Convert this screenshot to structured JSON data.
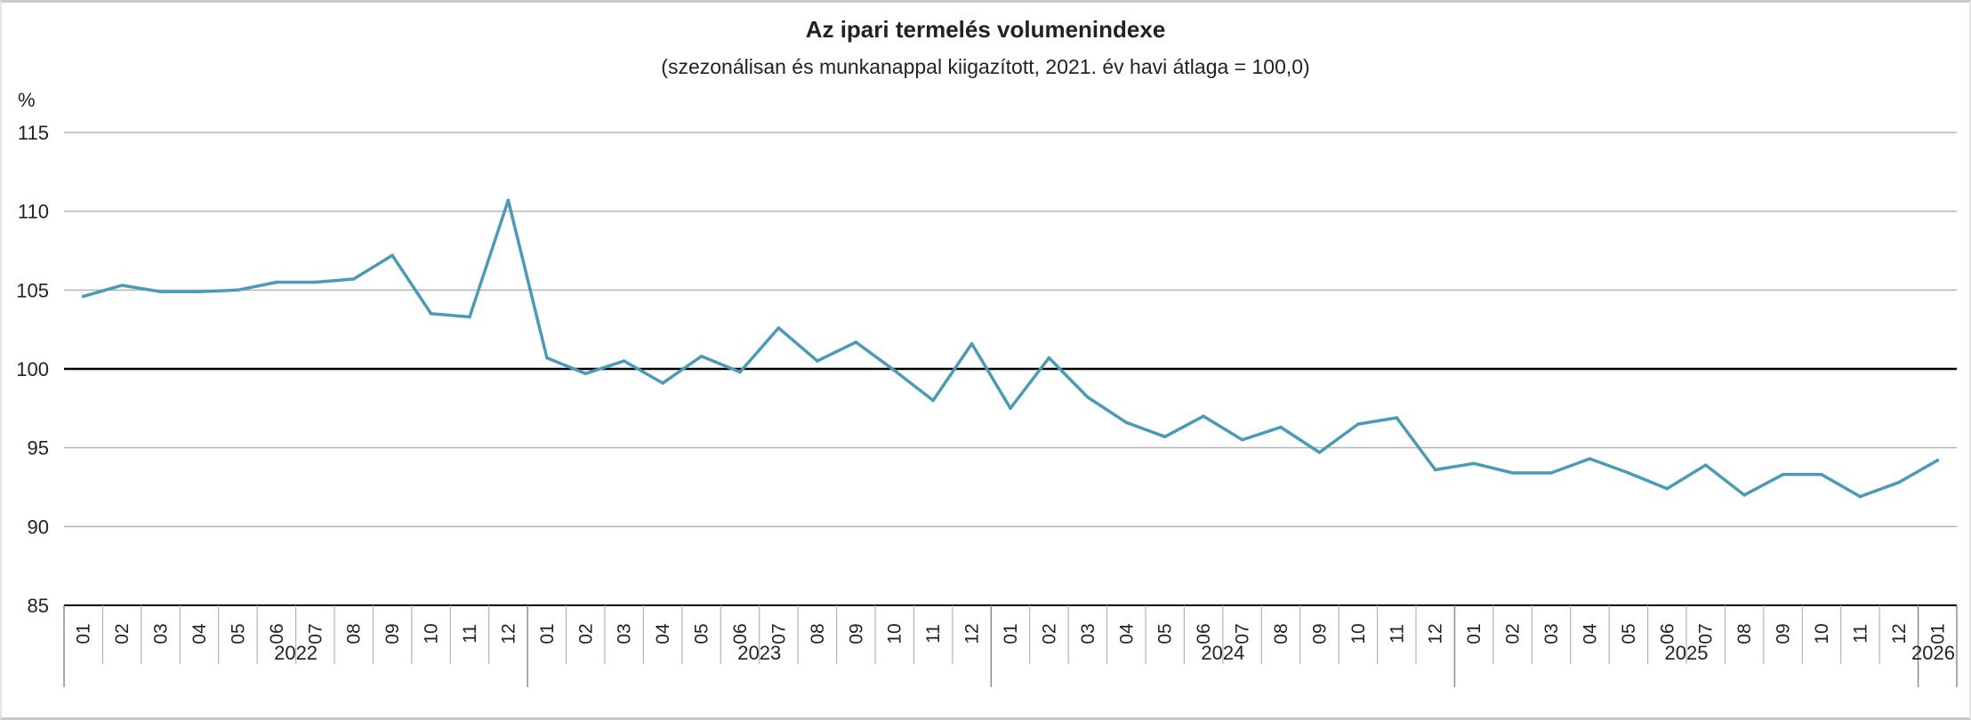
{
  "chart_data": {
    "type": "line",
    "title": "Az ipari termelés volumenindexe",
    "subtitle": "(szezonálisan és munkanappal kiigazított, 2021. év havi átlaga = 100,0)",
    "ylabel": "%",
    "xlabel": "",
    "ylim": [
      85,
      115
    ],
    "yticks": [
      85,
      90,
      95,
      100,
      105,
      110,
      115
    ],
    "reference_line": 100,
    "grid": true,
    "legend": "none",
    "line_color": "#4a9ab8",
    "years": [
      {
        "label": "2022",
        "months": 12
      },
      {
        "label": "2023",
        "months": 12
      },
      {
        "label": "2024",
        "months": 12
      },
      {
        "label": "2025",
        "months": 12
      },
      {
        "label": "2026",
        "months": 1
      }
    ],
    "month_labels": [
      "01",
      "02",
      "03",
      "04",
      "05",
      "06",
      "07",
      "08",
      "09",
      "10",
      "11",
      "12"
    ],
    "series": [
      {
        "values": [
          104.6,
          105.3,
          104.9,
          104.9,
          105.0,
          105.5,
          105.5,
          105.7,
          107.2,
          103.5,
          103.3,
          110.7,
          100.7,
          99.7,
          100.5,
          99.1,
          100.8,
          99.8,
          102.6,
          100.5,
          101.7,
          99.9,
          98.0,
          101.6,
          97.5,
          100.7,
          98.2,
          96.6,
          95.7,
          97.0,
          95.5,
          96.3,
          94.7,
          96.5,
          96.9,
          93.6,
          94.0,
          93.4,
          93.4,
          94.3,
          93.4,
          92.4,
          93.9,
          92.0,
          93.3,
          93.3,
          91.9,
          92.8,
          94.2
        ]
      }
    ]
  }
}
